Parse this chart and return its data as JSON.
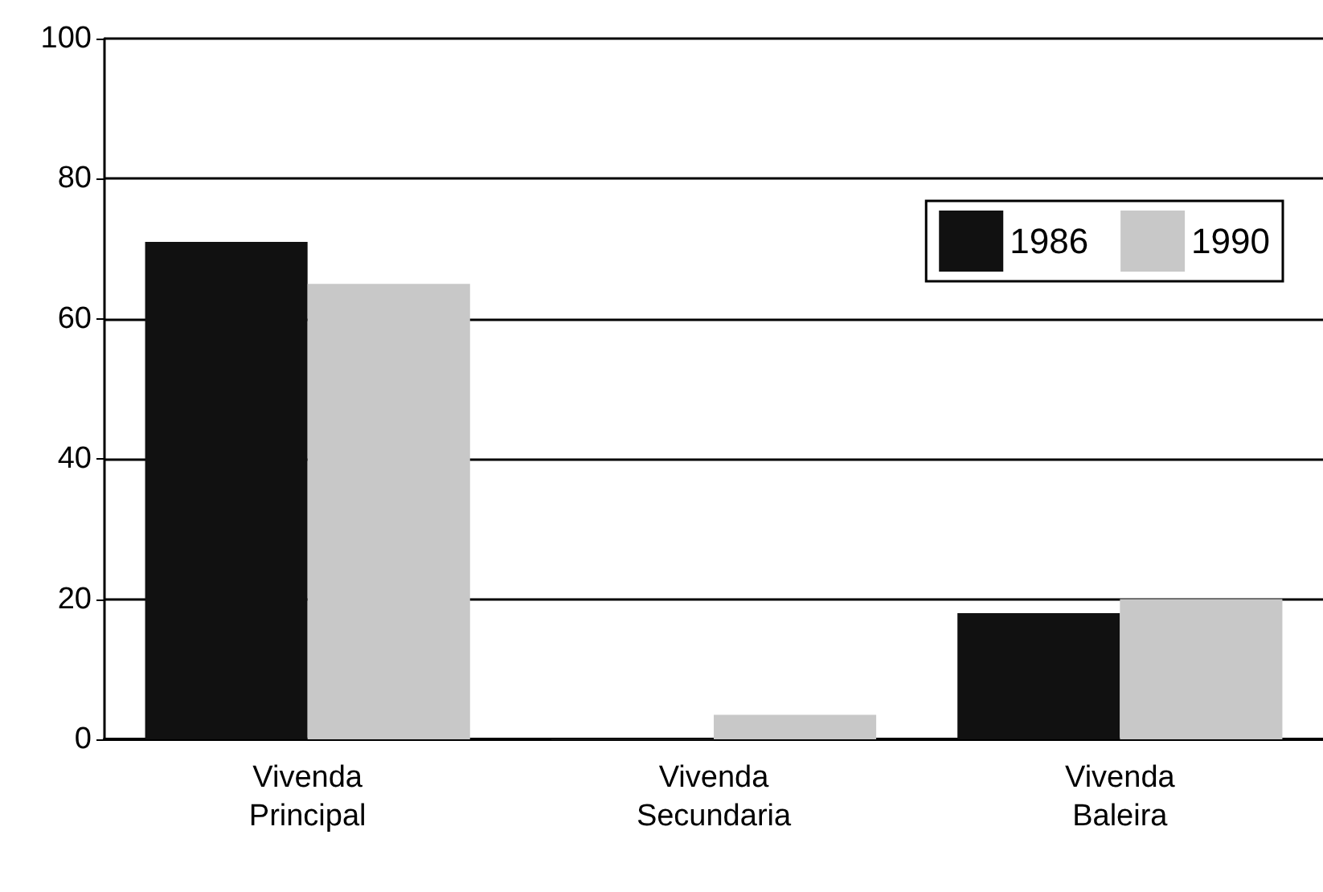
{
  "chart_data": {
    "type": "bar",
    "categories": [
      "Vivenda\nPrincipal",
      "Vivenda\nSecundaria",
      "Vivenda\nBaleira"
    ],
    "series": [
      {
        "name": "1986",
        "color": "#111111",
        "values": [
          71,
          0,
          18
        ]
      },
      {
        "name": "1990",
        "color": "#c8c8c8",
        "values": [
          65,
          3.5,
          20
        ]
      }
    ],
    "ylim": [
      0,
      100
    ],
    "yticks": [
      0,
      20,
      40,
      60,
      80,
      100
    ],
    "grid": "y",
    "legend": "top right"
  }
}
